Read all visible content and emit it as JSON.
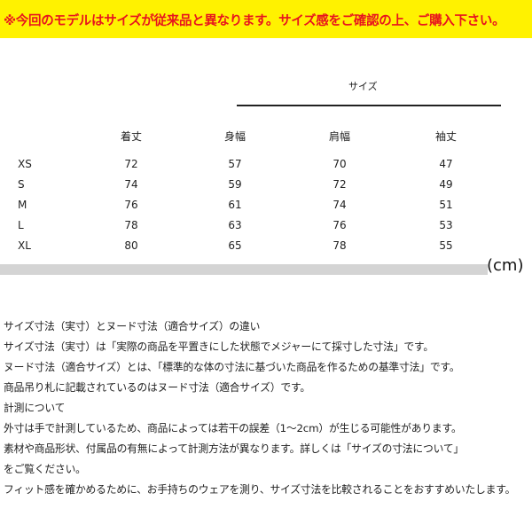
{
  "banner": {
    "text": "※今回のモデルはサイズが従来品と異なります。サイズ感をご確認の上、ご購入下さい。",
    "bg_color": "#fff200",
    "text_color": "#e8141e"
  },
  "table": {
    "group_header": "サイズ",
    "columns": [
      "着丈",
      "身幅",
      "肩幅",
      "袖丈"
    ],
    "rows": [
      {
        "size": "XS",
        "values": [
          "72",
          "57",
          "70",
          "47"
        ]
      },
      {
        "size": "S",
        "values": [
          "74",
          "59",
          "72",
          "49"
        ]
      },
      {
        "size": "M",
        "values": [
          "76",
          "61",
          "74",
          "51"
        ]
      },
      {
        "size": "L",
        "values": [
          "78",
          "63",
          "76",
          "53"
        ]
      },
      {
        "size": "XL",
        "values": [
          "80",
          "65",
          "78",
          "55"
        ]
      }
    ],
    "unit": "(cm)"
  },
  "notes": [
    "サイズ寸法（実寸）とヌード寸法（適合サイズ）の違い",
    "サイズ寸法（実寸）は「実際の商品を平置きにした状態でメジャーにて採寸した寸法」です。",
    "ヌード寸法（適合サイズ）とは、「標準的な体の寸法に基づいた商品を作るための基準寸法」です。",
    "商品吊り札に記載されているのはヌード寸法（適合サイズ）です。",
    "計測について",
    "外寸は手で計測しているため、商品によっては若干の誤差（1～2cm）が生じる可能性があります。",
    "素材や商品形状、付属品の有無によって計測方法が異なります。詳しくは「サイズの寸法について」",
    "をご覧ください。",
    "フィット感を確かめるために、お手持ちのウェアを測り、サイズ寸法を比較されることをおすすめいたします。"
  ]
}
